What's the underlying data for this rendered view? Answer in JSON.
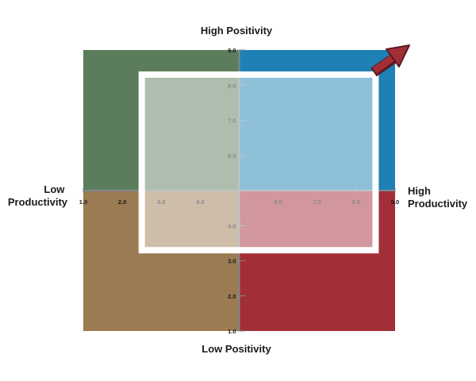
{
  "chart_data": {
    "type": "quadrant",
    "x_axis": {
      "range": [
        1.0,
        9.0
      ],
      "midpoint": 5.0,
      "ticks": [
        "1.0",
        "2.0",
        "3.0",
        "4.0",
        "6.0",
        "7.0",
        "8.0",
        "9.0"
      ],
      "tick_values": [
        1,
        2,
        3,
        4,
        6,
        7,
        8,
        9
      ],
      "low_label": [
        "Low",
        "Productivity"
      ],
      "high_label": [
        "High",
        "Productivity"
      ]
    },
    "y_axis": {
      "range": [
        1.0,
        9.0
      ],
      "midpoint": 5.0,
      "ticks": [
        "1.0",
        "2.0",
        "3.0",
        "4.0",
        "6.0",
        "7.0",
        "8.0",
        "9.0"
      ],
      "tick_values": [
        1,
        2,
        3,
        4,
        6,
        7,
        8,
        9
      ],
      "low_label": "Low Positivity",
      "high_label": "High Positivity"
    },
    "quadrants": [
      {
        "name": "top-left",
        "color": "#5c7d5c"
      },
      {
        "name": "top-right",
        "color": "#1e80b4"
      },
      {
        "name": "bottom-left",
        "color": "#9c7a52"
      },
      {
        "name": "bottom-right",
        "color": "#a22e38"
      }
    ],
    "highlight_region": {
      "x": [
        2.5,
        8.5
      ],
      "y": [
        3.3,
        8.3
      ]
    },
    "arrow": {
      "direction": "top-right",
      "color": "#a22e38"
    }
  }
}
